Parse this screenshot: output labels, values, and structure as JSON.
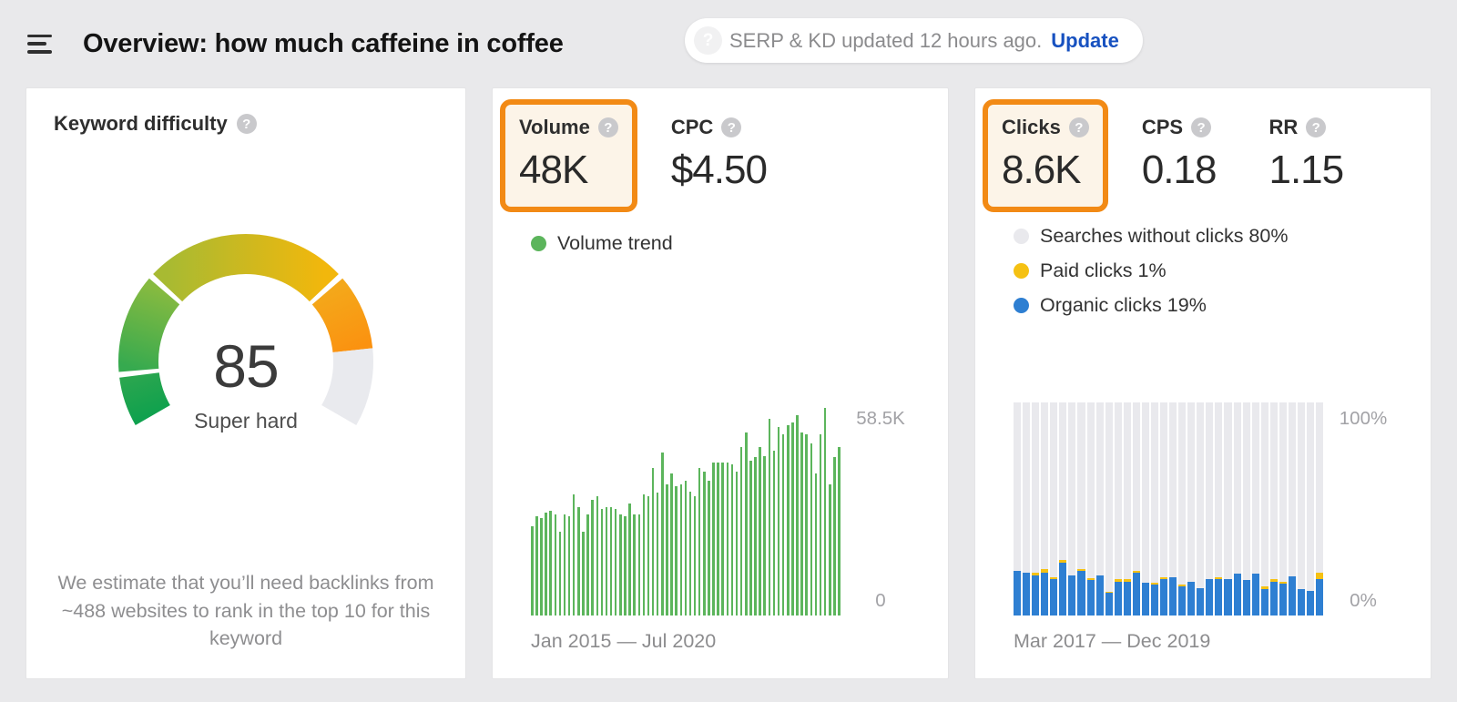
{
  "header": {
    "title": "Overview: how much caffeine in coffee",
    "status_text": "SERP & KD updated 12 hours ago.",
    "update_label": "Update"
  },
  "icons": {
    "help": "?"
  },
  "colors": {
    "accent_orange": "#f28a15",
    "highlight_fill": "#fcf4e8",
    "volume_green": "#5cb55c",
    "organic_blue": "#2e7fd2",
    "paid_yellow": "#f5c113",
    "no_click_gray": "#e9e9ed",
    "update_blue": "#1751c0"
  },
  "keyword_difficulty": {
    "label": "Keyword difficulty",
    "score": "85",
    "rating": "Super hard",
    "note": "We estimate that you’ll need backlinks from ~488 websites to rank in the top 10 for this keyword"
  },
  "volume_card": {
    "metrics": [
      {
        "label": "Volume",
        "value": "48K",
        "highlighted": true
      },
      {
        "label": "CPC",
        "value": "$4.50",
        "highlighted": false
      }
    ],
    "legend": [
      {
        "label": "Volume trend",
        "color": "#5cb55c"
      }
    ],
    "y_axis": {
      "top": "58.5K",
      "bottom": "0"
    },
    "date_range": "Jan 2015 — Jul 2020"
  },
  "clicks_card": {
    "metrics": [
      {
        "label": "Clicks",
        "value": "8.6K",
        "highlighted": true
      },
      {
        "label": "CPS",
        "value": "0.18",
        "highlighted": false
      },
      {
        "label": "RR",
        "value": "1.15",
        "highlighted": false
      }
    ],
    "legend": [
      {
        "label": "Searches without clicks 80%",
        "color": "#e9e9ed"
      },
      {
        "label": "Paid clicks 1%",
        "color": "#f5c113"
      },
      {
        "label": "Organic clicks 19%",
        "color": "#2e7fd2"
      }
    ],
    "y_axis": {
      "top": "100%",
      "bottom": "0%"
    },
    "date_range": "Mar 2017 — Dec 2019"
  },
  "chart_data": [
    {
      "id": "volume_trend",
      "type": "bar",
      "title": "Volume trend",
      "x_range": [
        "Jan 2015",
        "Jul 2020"
      ],
      "x_unit": "month",
      "ylim": [
        0,
        60
      ],
      "y_gridline_label": "58.5K",
      "unit": "K searches/mo",
      "bar_color": "#5cb55c",
      "values": [
        25,
        28,
        27.5,
        29,
        29.5,
        28.5,
        23.5,
        28.5,
        28,
        34,
        30.5,
        23.5,
        28.5,
        32.5,
        33.5,
        30,
        30.5,
        30.5,
        30,
        28.5,
        28,
        31.5,
        28.5,
        28.5,
        34,
        33.5,
        41.5,
        34.5,
        46,
        37,
        40,
        36.5,
        37,
        38,
        35,
        33.5,
        41.5,
        40.5,
        38,
        43,
        43,
        43,
        43,
        42.5,
        40.5,
        47.5,
        51.5,
        43.5,
        44.5,
        47.5,
        45,
        55.5,
        46.5,
        53,
        51,
        53.5,
        54.5,
        56.5,
        51.5,
        51,
        48.5,
        40,
        51,
        58.5,
        37,
        44.5,
        47.5
      ]
    },
    {
      "id": "clicks_breakdown",
      "type": "stacked_bar_percent",
      "x_range": [
        "Mar 2017",
        "Dec 2019"
      ],
      "x_unit": "month",
      "ylim": [
        0,
        100
      ],
      "series": [
        {
          "id": "organic",
          "name": "Organic clicks",
          "color": "#2e7fd2",
          "values": [
            21,
            20,
            19,
            20,
            17,
            25,
            19,
            21,
            16.5,
            19,
            10.5,
            16,
            16,
            20,
            15.5,
            14.5,
            17,
            18,
            13.5,
            16,
            13,
            17,
            17,
            17,
            19.5,
            16.5,
            19.5,
            12.5,
            16,
            15,
            18.5,
            12.5,
            11.5,
            17
          ]
        },
        {
          "id": "paid",
          "name": "Paid clicks",
          "color": "#f5c113",
          "values": [
            0,
            0,
            1,
            2,
            1,
            1,
            0,
            1,
            1,
            0,
            0.5,
            1,
            1,
            1,
            0,
            1,
            1,
            0,
            1,
            0,
            0,
            0,
            1,
            0,
            0,
            0,
            0,
            1,
            1,
            1,
            0,
            0,
            0,
            3
          ]
        },
        {
          "id": "no_clicks",
          "name": "Searches without clicks",
          "color": "#e9e9ed",
          "values_rule": "remainder_to_100"
        }
      ]
    },
    {
      "id": "keyword_difficulty_gauge",
      "type": "gauge",
      "value": 85,
      "max": 100,
      "rating": "Super hard",
      "track_color": "#e9eaee",
      "segments": [
        {
          "from": 0,
          "to": 10,
          "color_start": "#0fa14e",
          "color_end": "#2aa64f"
        },
        {
          "from": 10,
          "to": 30,
          "color_start": "#36aa4f",
          "color_end": "#86ba40"
        },
        {
          "from": 30,
          "to": 70,
          "color_start": "#a8ba32",
          "color_end": "#f2b70c"
        },
        {
          "from": 70,
          "to": 85,
          "color_start": "#f4a81a",
          "color_end": "#fb9210"
        }
      ]
    }
  ]
}
